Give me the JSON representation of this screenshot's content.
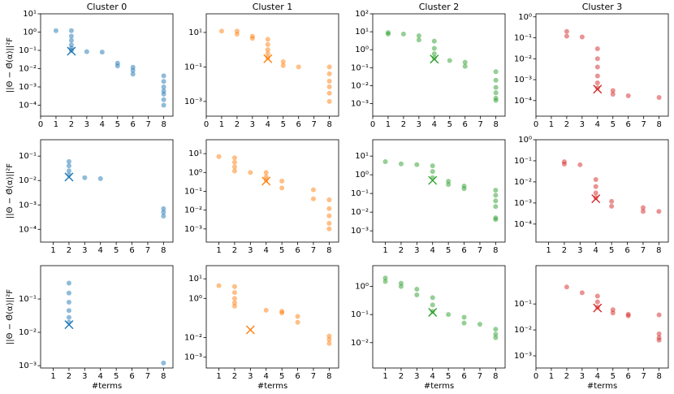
{
  "chart_data": [
    {
      "type": "scatter",
      "title": "Cluster 0",
      "ylabel": "||Θ − Θ̂(α)||²F",
      "log_y": true,
      "xlim": [
        0,
        8.6
      ],
      "xticks": [
        0,
        1,
        2,
        3,
        4,
        5,
        6,
        7,
        8
      ],
      "ylim": [
        2.5e-05,
        10
      ],
      "yticks": [
        {
          "value": 10,
          "label": "10¹"
        },
        {
          "value": 1,
          "label": "10⁰"
        },
        {
          "value": 0.1,
          "label": "10⁻¹"
        },
        {
          "value": 0.01,
          "label": "10⁻²"
        },
        {
          "value": 0.001,
          "label": "10⁻³"
        },
        {
          "value": 0.0001,
          "label": "10⁻⁴"
        }
      ],
      "series": [
        {
          "color": "#1f77b4",
          "x": [
            1,
            2,
            2,
            2,
            2,
            2,
            2,
            3,
            4,
            5,
            5,
            6,
            6,
            6,
            8,
            8,
            8,
            8,
            8,
            8,
            8
          ],
          "values": [
            1.2,
            1.2,
            0.6,
            0.35,
            0.2,
            0.13,
            0.1,
            0.085,
            0.08,
            0.02,
            0.014,
            0.012,
            0.008,
            0.005,
            0.004,
            0.002,
            0.001,
            0.0006,
            0.0004,
            0.0002,
            0.0001
          ]
        },
        {
          "color": "#1f77b4",
          "marker": "x",
          "x": [
            2
          ],
          "values": [
            0.09
          ]
        }
      ]
    },
    {
      "type": "scatter",
      "title": "Cluster 1",
      "log_y": true,
      "xlim": [
        0,
        8.6
      ],
      "xticks": [
        0,
        1,
        2,
        3,
        4,
        5,
        6,
        7,
        8
      ],
      "ylim": [
        0.00014,
        120
      ],
      "yticks": [
        {
          "value": 10,
          "label": "10¹"
        },
        {
          "value": 0.1,
          "label": "10⁻¹"
        },
        {
          "value": 0.001,
          "label": "10⁻³"
        }
      ],
      "series": [
        {
          "color": "#ff7f0e",
          "x": [
            1,
            2,
            2,
            3,
            3,
            4,
            4,
            4,
            4,
            4,
            5,
            5,
            6,
            8,
            8,
            8,
            8,
            8,
            8
          ],
          "values": [
            12,
            12,
            8,
            6,
            4.5,
            4,
            2,
            1,
            0.6,
            0.35,
            0.2,
            0.12,
            0.1,
            0.1,
            0.04,
            0.015,
            0.007,
            0.003,
            0.001
          ]
        },
        {
          "color": "#ff7f0e",
          "marker": "x",
          "x": [
            4
          ],
          "values": [
            0.3
          ]
        }
      ]
    },
    {
      "type": "scatter",
      "title": "Cluster 2",
      "log_y": true,
      "xlim": [
        0,
        8.6
      ],
      "xticks": [
        0,
        1,
        2,
        3,
        4,
        5,
        6,
        7,
        8
      ],
      "ylim": [
        0.0002,
        100
      ],
      "yticks": [
        {
          "value": 100,
          "label": "10²"
        },
        {
          "value": 10,
          "label": "10¹"
        },
        {
          "value": 1,
          "label": "10⁰"
        },
        {
          "value": 0.1,
          "label": "10⁻¹"
        },
        {
          "value": 0.01,
          "label": "10⁻²"
        },
        {
          "value": 0.001,
          "label": "10⁻³"
        }
      ],
      "series": [
        {
          "color": "#2ca02c",
          "x": [
            1,
            1,
            2,
            3,
            3,
            4,
            4,
            4,
            4,
            5,
            6,
            6,
            8,
            8,
            8,
            8,
            8,
            8
          ],
          "values": [
            9,
            7.5,
            7.5,
            6,
            3.5,
            3,
            1.2,
            0.6,
            0.35,
            0.25,
            0.2,
            0.12,
            0.06,
            0.02,
            0.008,
            0.004,
            0.002,
            0.0015
          ]
        },
        {
          "color": "#2ca02c",
          "marker": "x",
          "x": [
            4
          ],
          "values": [
            0.3
          ]
        }
      ]
    },
    {
      "type": "scatter",
      "title": "Cluster 3",
      "log_y": true,
      "xlim": [
        0,
        8.6
      ],
      "xticks": [
        0,
        1,
        2,
        3,
        4,
        5,
        6,
        7,
        8
      ],
      "ylim": [
        1.8e-05,
        1.4
      ],
      "yticks": [
        {
          "value": 1,
          "label": "10⁰"
        },
        {
          "value": 0.1,
          "label": "10⁻¹"
        },
        {
          "value": 0.01,
          "label": "10⁻²"
        },
        {
          "value": 0.001,
          "label": "10⁻³"
        },
        {
          "value": 0.0001,
          "label": "10⁻⁴"
        }
      ],
      "series": [
        {
          "color": "#d62728",
          "x": [
            2,
            2,
            3,
            4,
            4,
            4,
            4,
            4,
            4,
            5,
            5,
            6,
            8
          ],
          "values": [
            0.2,
            0.12,
            0.11,
            0.03,
            0.01,
            0.004,
            0.0015,
            0.0007,
            0.0004,
            0.0003,
            0.0002,
            0.00017,
            0.00014
          ]
        },
        {
          "color": "#d62728",
          "marker": "x",
          "x": [
            4
          ],
          "values": [
            0.00035
          ]
        }
      ]
    },
    {
      "type": "scatter",
      "ylabel": "||Θ − Θ̂(α)||²F",
      "log_y": true,
      "xlim": [
        0.2,
        8.6
      ],
      "xticks": [
        1,
        2,
        3,
        4,
        5,
        6,
        7,
        8
      ],
      "ylim": [
        3e-05,
        0.47
      ],
      "yticks": [
        {
          "value": 0.1,
          "label": "10⁻¹"
        },
        {
          "value": 0.01,
          "label": "10⁻²"
        },
        {
          "value": 0.001,
          "label": "10⁻³"
        },
        {
          "value": 0.0001,
          "label": "10⁻⁴"
        }
      ],
      "series": [
        {
          "color": "#1f77b4",
          "x": [
            2,
            2,
            2,
            2,
            3,
            4,
            8,
            8,
            8
          ],
          "values": [
            0.06,
            0.04,
            0.025,
            0.017,
            0.013,
            0.012,
            0.0007,
            0.0005,
            0.00035
          ]
        },
        {
          "color": "#1f77b4",
          "marker": "x",
          "x": [
            2
          ],
          "values": [
            0.014
          ]
        }
      ]
    },
    {
      "type": "scatter",
      "log_y": true,
      "xlim": [
        0.2,
        8.6
      ],
      "xticks": [
        1,
        2,
        3,
        4,
        5,
        6,
        7,
        8
      ],
      "ylim": [
        0.0002,
        55
      ],
      "yticks": [
        {
          "value": 10,
          "label": "10¹"
        },
        {
          "value": 1,
          "label": "10⁰"
        },
        {
          "value": 0.1,
          "label": "10⁻¹"
        },
        {
          "value": 0.01,
          "label": "10⁻²"
        },
        {
          "value": 0.001,
          "label": "10⁻³"
        }
      ],
      "series": [
        {
          "color": "#ff7f0e",
          "x": [
            1,
            2,
            2,
            2,
            2,
            3,
            4,
            4,
            4,
            5,
            5,
            7,
            7,
            8,
            8,
            8,
            8,
            8
          ],
          "values": [
            7,
            6,
            3.5,
            2,
            1.2,
            1,
            1,
            0.6,
            0.4,
            0.35,
            0.15,
            0.12,
            0.04,
            0.035,
            0.012,
            0.005,
            0.002,
            0.001
          ]
        },
        {
          "color": "#ff7f0e",
          "marker": "x",
          "x": [
            4
          ],
          "values": [
            0.35
          ]
        }
      ]
    },
    {
      "type": "scatter",
      "log_y": true,
      "xlim": [
        0.2,
        8.6
      ],
      "xticks": [
        1,
        2,
        3,
        4,
        5,
        6,
        7,
        8
      ],
      "ylim": [
        0.00025,
        75
      ],
      "yticks": [
        {
          "value": 10,
          "label": "10¹"
        },
        {
          "value": 1,
          "label": "10⁰"
        },
        {
          "value": 0.1,
          "label": "10⁻¹"
        },
        {
          "value": 0.01,
          "label": "10⁻²"
        },
        {
          "value": 0.001,
          "label": "10⁻³"
        }
      ],
      "series": [
        {
          "color": "#2ca02c",
          "x": [
            1,
            2,
            3,
            4,
            4,
            4,
            5,
            5,
            6,
            6,
            8,
            8,
            8,
            8,
            8,
            8
          ],
          "values": [
            5,
            3.8,
            3.5,
            3,
            1.5,
            0.7,
            0.45,
            0.3,
            0.25,
            0.18,
            0.15,
            0.08,
            0.04,
            0.02,
            0.005,
            0.004
          ]
        },
        {
          "color": "#2ca02c",
          "marker": "x",
          "x": [
            4
          ],
          "values": [
            0.5
          ]
        }
      ]
    },
    {
      "type": "scatter",
      "log_y": true,
      "xlim": [
        0.2,
        8.6
      ],
      "xticks": [
        1,
        2,
        3,
        4,
        5,
        6,
        7,
        8
      ],
      "ylim": [
        1.4e-05,
        1
      ],
      "yticks": [
        {
          "value": 1,
          "label": "10⁰"
        },
        {
          "value": 0.1,
          "label": "10⁻¹"
        },
        {
          "value": 0.01,
          "label": "10⁻²"
        },
        {
          "value": 0.001,
          "label": "10⁻³"
        },
        {
          "value": 0.0001,
          "label": "10⁻⁴"
        }
      ],
      "series": [
        {
          "color": "#d62728",
          "x": [
            2,
            2,
            3,
            4,
            4,
            4,
            4,
            5,
            5,
            7,
            7,
            8
          ],
          "values": [
            0.09,
            0.07,
            0.065,
            0.013,
            0.006,
            0.003,
            0.0018,
            0.0012,
            0.0007,
            0.0006,
            0.0004,
            0.0004
          ]
        },
        {
          "color": "#d62728",
          "marker": "x",
          "x": [
            4
          ],
          "values": [
            0.0016
          ]
        }
      ]
    },
    {
      "type": "scatter",
      "ylabel": "||Θ − Θ̂(α)||²F",
      "xlabel": "#terms",
      "log_y": true,
      "xlim": [
        0.2,
        8.6
      ],
      "xticks": [
        1,
        2,
        3,
        4,
        5,
        6,
        7,
        8
      ],
      "ylim": [
        0.00085,
        1
      ],
      "yticks": [
        {
          "value": 0.1,
          "label": "10⁻¹"
        },
        {
          "value": 0.01,
          "label": "10⁻²"
        },
        {
          "value": 0.001,
          "label": "10⁻³"
        }
      ],
      "series": [
        {
          "color": "#1f77b4",
          "x": [
            2,
            2,
            2,
            2,
            2,
            2,
            8
          ],
          "values": [
            0.3,
            0.15,
            0.08,
            0.045,
            0.028,
            0.02,
            0.0012
          ]
        },
        {
          "color": "#1f77b4",
          "marker": "x",
          "x": [
            2
          ],
          "values": [
            0.017
          ]
        }
      ]
    },
    {
      "type": "scatter",
      "xlabel": "#terms",
      "log_y": true,
      "xlim": [
        0.2,
        8.6
      ],
      "xticks": [
        1,
        2,
        3,
        4,
        5,
        6,
        7,
        8
      ],
      "ylim": [
        0.00028,
        47
      ],
      "yticks": [
        {
          "value": 10,
          "label": "10¹"
        },
        {
          "value": 1,
          "label": "10⁰"
        },
        {
          "value": 0.01,
          "label": "10⁻²"
        },
        {
          "value": 0.001,
          "label": "10⁻³"
        }
      ],
      "series": [
        {
          "color": "#ff7f0e",
          "x": [
            1,
            2,
            2,
            2,
            2,
            2,
            4,
            5,
            5,
            6,
            6,
            8,
            8,
            8
          ],
          "values": [
            4.5,
            4,
            2,
            1,
            0.6,
            0.4,
            0.25,
            0.22,
            0.18,
            0.12,
            0.06,
            0.012,
            0.008,
            0.005
          ]
        },
        {
          "color": "#ff7f0e",
          "marker": "x",
          "x": [
            3
          ],
          "values": [
            0.025
          ]
        }
      ]
    },
    {
      "type": "scatter",
      "xlabel": "#terms",
      "log_y": true,
      "xlim": [
        0.2,
        8.6
      ],
      "xticks": [
        1,
        2,
        3,
        4,
        5,
        6,
        7,
        8
      ],
      "ylim": [
        0.00125,
        5.5
      ],
      "yticks": [
        {
          "value": 1,
          "label": "10⁰"
        },
        {
          "value": 0.1,
          "label": "10⁻¹"
        },
        {
          "value": 0.01,
          "label": "10⁻²"
        }
      ],
      "series": [
        {
          "color": "#2ca02c",
          "x": [
            1,
            1,
            2,
            2,
            3,
            3,
            4,
            4,
            4,
            5,
            6,
            6,
            7,
            8,
            8,
            8
          ],
          "values": [
            2,
            1.5,
            1.3,
            1,
            0.8,
            0.5,
            0.4,
            0.22,
            0.13,
            0.1,
            0.08,
            0.05,
            0.045,
            0.03,
            0.02,
            0.015
          ]
        },
        {
          "color": "#2ca02c",
          "marker": "x",
          "x": [
            4
          ],
          "values": [
            0.12
          ]
        }
      ]
    },
    {
      "type": "scatter",
      "xlabel": "#terms",
      "log_y": true,
      "xlim": [
        0,
        8.6
      ],
      "xticks": [
        0,
        1,
        2,
        3,
        4,
        5,
        6,
        7,
        8
      ],
      "ylim": [
        0.00034,
        3
      ],
      "yticks": [
        {
          "value": 0.1,
          "label": "10⁻¹"
        },
        {
          "value": 0.01,
          "label": "10⁻²"
        },
        {
          "value": 0.001,
          "label": "10⁻³"
        }
      ],
      "series": [
        {
          "color": "#d62728",
          "x": [
            2,
            3,
            4,
            4,
            4,
            5,
            5,
            6,
            6,
            8,
            8,
            8,
            8
          ],
          "values": [
            0.45,
            0.27,
            0.2,
            0.12,
            0.075,
            0.06,
            0.045,
            0.04,
            0.035,
            0.038,
            0.007,
            0.005,
            0.004
          ]
        },
        {
          "color": "#d62728",
          "marker": "x",
          "x": [
            4
          ],
          "values": [
            0.07
          ]
        }
      ]
    }
  ]
}
